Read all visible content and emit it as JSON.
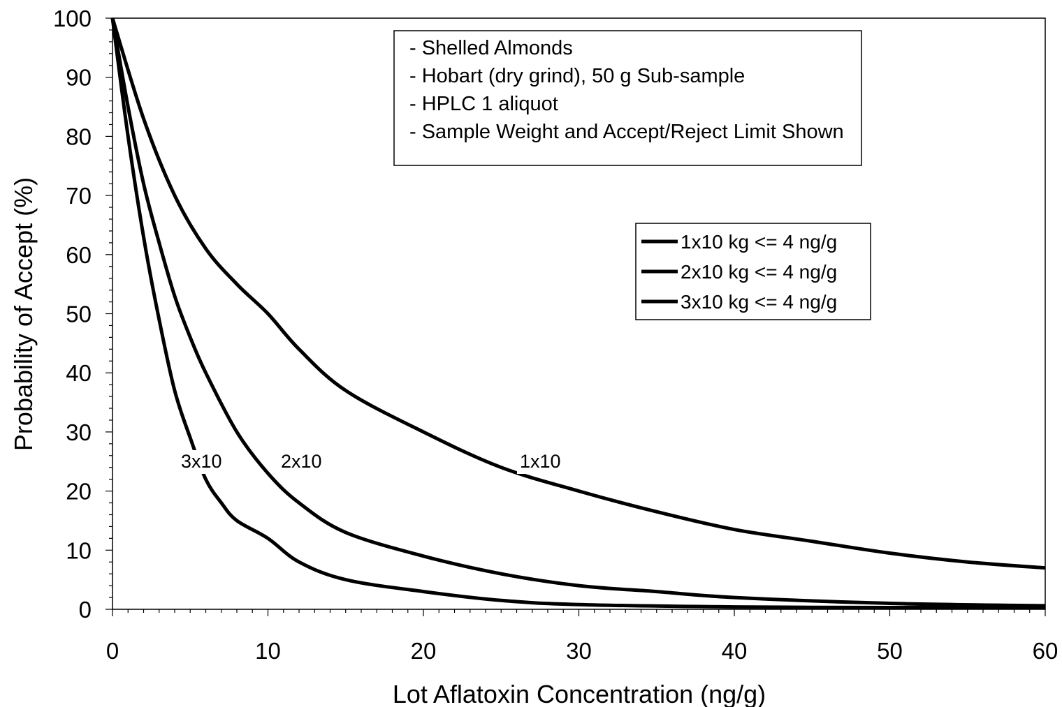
{
  "chart_data": {
    "type": "line",
    "title": "",
    "xlabel": "Lot Aflatoxin Concentration (ng/g)",
    "ylabel": "Probability of Accept (%)",
    "xlim": [
      0,
      60
    ],
    "ylim": [
      0,
      100
    ],
    "x_ticks": [
      0,
      10,
      20,
      30,
      40,
      50,
      60
    ],
    "y_ticks": [
      0,
      10,
      20,
      30,
      40,
      50,
      60,
      70,
      80,
      90,
      100
    ],
    "grid": false,
    "legend_position": "right",
    "notes": [
      "- Shelled Almonds",
      "- Hobart (dry grind), 50 g Sub-sample",
      "- HPLC 1 aliquot",
      "- Sample Weight and Accept/Reject Limit Shown"
    ],
    "series": [
      {
        "name": "1x10 kg <= 4 ng/g",
        "label": "1x10",
        "color": "#000000",
        "x": [
          0,
          2,
          4,
          6,
          8,
          10,
          12,
          15,
          20,
          25,
          30,
          35,
          40,
          45,
          50,
          55,
          60
        ],
        "y": [
          100,
          83,
          70,
          61,
          55,
          50,
          44,
          37,
          30,
          24,
          20,
          16.5,
          13.5,
          11.5,
          9.5,
          8,
          7
        ]
      },
      {
        "name": "2x10 kg <= 4 ng/g",
        "label": "2x10",
        "color": "#000000",
        "x": [
          0,
          1,
          2,
          3,
          4,
          5,
          6,
          8,
          10,
          12,
          15,
          20,
          25,
          30,
          35,
          40,
          50,
          60
        ],
        "y": [
          100,
          85,
          72,
          62,
          53,
          46,
          40,
          30,
          23,
          18,
          13,
          9,
          6,
          4,
          3,
          2,
          1,
          0.6
        ]
      },
      {
        "name": "3x10 kg <= 4 ng/g",
        "label": "3x10",
        "color": "#000000",
        "x": [
          0,
          1,
          2,
          3,
          4,
          5,
          6,
          7,
          8,
          10,
          12,
          15,
          20,
          25,
          30,
          40,
          50,
          60
        ],
        "y": [
          100,
          80,
          63,
          49,
          37,
          29,
          22,
          18,
          15,
          12,
          8,
          5,
          3,
          1.5,
          0.8,
          0.4,
          0.3,
          0.3
        ]
      }
    ]
  }
}
